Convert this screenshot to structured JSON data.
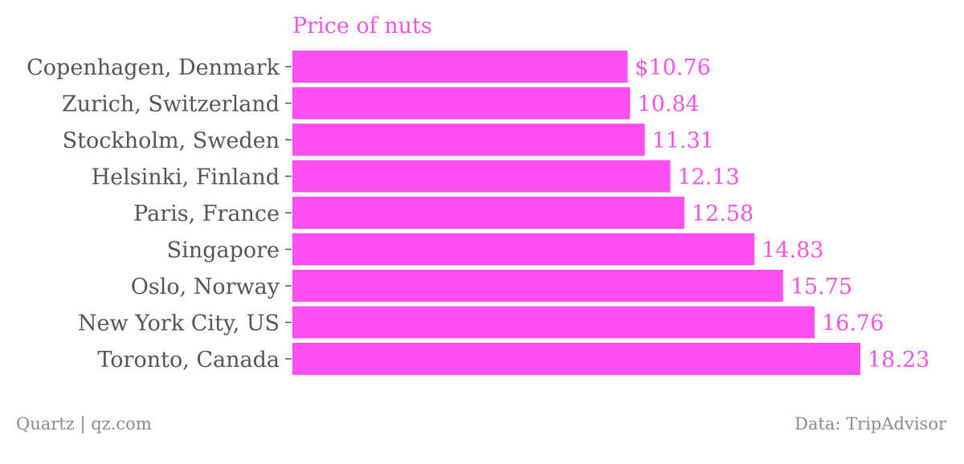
{
  "chart_data": {
    "type": "bar",
    "orientation": "horizontal",
    "title": "Price of nuts",
    "categories": [
      "Copenhagen, Denmark",
      "Zurich, Switzerland",
      "Stockholm, Sweden",
      "Helsinki, Finland",
      "Paris, France",
      "Singapore",
      "Oslo, Norway",
      "New York City, US",
      "Toronto, Canada"
    ],
    "values": [
      10.76,
      10.84,
      11.31,
      12.13,
      12.58,
      14.83,
      15.75,
      16.76,
      18.23
    ],
    "value_labels": [
      "$10.76",
      "10.84",
      "11.31",
      "12.13",
      "12.58",
      "14.83",
      "15.75",
      "16.76",
      "18.23"
    ],
    "xlim": [
      0,
      18.23
    ],
    "grid": false,
    "legend": "none",
    "colors": {
      "bar": "#ff4ff0",
      "title": "#f752e6",
      "value_label": "#f752e6",
      "category_label": "#555555",
      "footer": "#8c8c8c"
    }
  },
  "footer": {
    "credit": "Quartz | qz.com",
    "source": "Data: TripAdvisor"
  }
}
